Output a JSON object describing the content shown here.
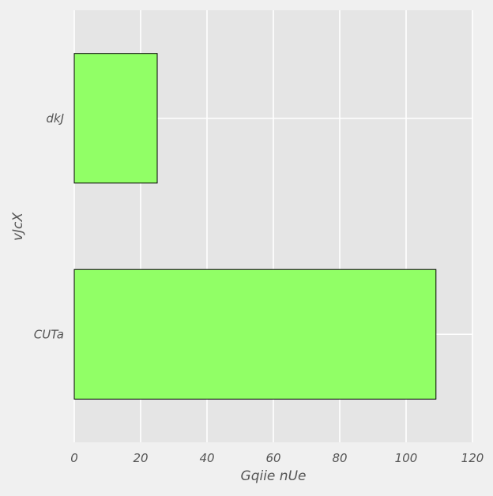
{
  "chart_data": {
    "type": "bar",
    "orientation": "horizontal",
    "categories": [
      "CUTa",
      "dkJ"
    ],
    "values": [
      109,
      25
    ],
    "title": "",
    "xlabel": "Gqiie nUe",
    "ylabel": "vJcX",
    "xlim": [
      0,
      120
    ],
    "x_ticks": [
      0,
      20,
      40,
      60,
      80,
      100,
      120
    ],
    "grid": true,
    "legend": "none",
    "colors": {
      "bar_fill": "#91ff66",
      "bar_stroke": "#000000",
      "plot_background": "#e5e5e5",
      "figure_background": "#f0f0f0",
      "grid": "#ffffff",
      "text": "#555555"
    }
  }
}
